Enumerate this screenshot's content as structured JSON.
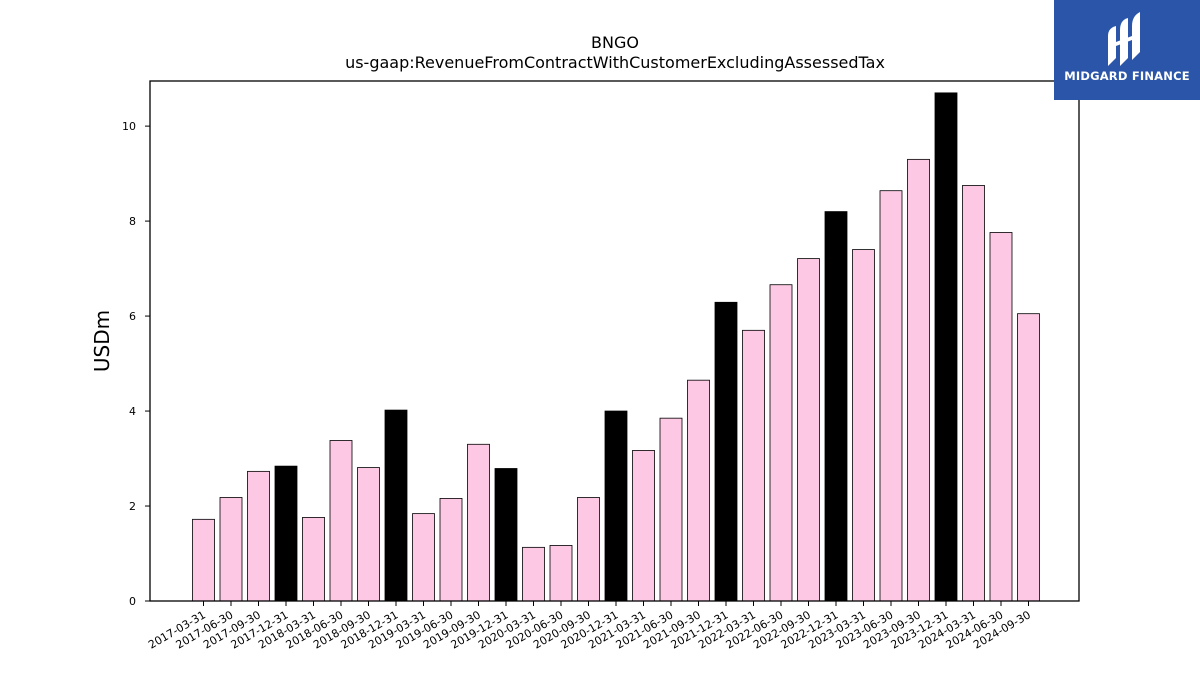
{
  "chart_data": {
    "type": "bar",
    "title": "BNGO",
    "subtitle": "us-gaap:RevenueFromContractWithCustomerExcludingAssessedTax",
    "xlabel": "",
    "ylabel": "USDm",
    "ylim": [
      0,
      10.95
    ],
    "yticks": [
      0,
      2,
      4,
      6,
      8,
      10
    ],
    "grid": false,
    "categories": [
      "2017-03-31",
      "2017-06-30",
      "2017-09-30",
      "2017-12-31",
      "2018-03-31",
      "2018-06-30",
      "2018-09-30",
      "2018-12-31",
      "2019-03-31",
      "2019-06-30",
      "2019-09-30",
      "2019-12-31",
      "2020-03-31",
      "2020-06-30",
      "2020-09-30",
      "2020-12-31",
      "2021-03-31",
      "2021-06-30",
      "2021-09-30",
      "2021-12-31",
      "2022-03-31",
      "2022-06-30",
      "2022-09-30",
      "2022-12-31",
      "2023-03-31",
      "2023-06-30",
      "2023-09-30",
      "2023-12-31",
      "2024-03-31",
      "2024-06-30",
      "2024-09-30"
    ],
    "values": [
      1.72,
      2.18,
      2.73,
      2.84,
      1.76,
      3.38,
      2.81,
      4.02,
      1.84,
      2.16,
      3.3,
      2.79,
      1.13,
      1.17,
      2.18,
      4.0,
      3.17,
      3.85,
      4.65,
      6.29,
      5.7,
      6.66,
      7.21,
      8.2,
      7.4,
      8.64,
      9.3,
      10.7,
      8.75,
      7.76,
      6.05
    ],
    "year_end": [
      false,
      false,
      false,
      true,
      false,
      false,
      false,
      true,
      false,
      false,
      false,
      true,
      false,
      false,
      false,
      true,
      false,
      false,
      false,
      true,
      false,
      false,
      false,
      true,
      false,
      false,
      false,
      true,
      false,
      false,
      false
    ],
    "colors": {
      "quarter": "#fcc8e3",
      "year_end": "#000000",
      "edge": "#000000"
    }
  },
  "logo": {
    "text": "MIDGARD FINANCE",
    "background": "#2a55a8"
  }
}
